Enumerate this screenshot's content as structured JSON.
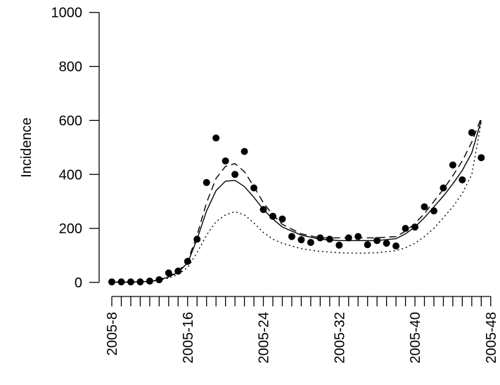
{
  "chart_data": {
    "type": "scatter",
    "ylabel": "Incidence",
    "xlabel": "",
    "xlim": [
      8,
      48
    ],
    "ylim": [
      0,
      1000
    ],
    "x_ticks": [
      {
        "value": 8,
        "label": "2005-8"
      },
      {
        "value": 16,
        "label": "2005-16"
      },
      {
        "value": 24,
        "label": "2005-24"
      },
      {
        "value": 32,
        "label": "2005-32"
      },
      {
        "value": 40,
        "label": "2005-40"
      },
      {
        "value": 48,
        "label": "2005-48"
      }
    ],
    "y_ticks": [
      {
        "value": 0,
        "label": "0"
      },
      {
        "value": 200,
        "label": "200"
      },
      {
        "value": 400,
        "label": "400"
      },
      {
        "value": 600,
        "label": "600"
      },
      {
        "value": 800,
        "label": "800"
      },
      {
        "value": 1000,
        "label": "1000"
      }
    ],
    "grid": false,
    "legend": "none",
    "points": {
      "marker": "filled-circle",
      "color": "#000000",
      "x": [
        8,
        9,
        10,
        11,
        12,
        13,
        14,
        15,
        16,
        17,
        18,
        19,
        20,
        21,
        22,
        23,
        24,
        25,
        26,
        27,
        28,
        29,
        30,
        31,
        32,
        33,
        34,
        35,
        36,
        37,
        38,
        39,
        40,
        41,
        42,
        43,
        44,
        45,
        46,
        47
      ],
      "y": [
        2,
        2,
        2,
        2,
        5,
        10,
        35,
        42,
        78,
        160,
        370,
        535,
        450,
        400,
        485,
        350,
        270,
        245,
        235,
        170,
        158,
        148,
        165,
        160,
        138,
        165,
        170,
        140,
        155,
        145,
        135,
        200,
        205,
        280,
        265,
        350,
        435,
        380,
        555,
        462
      ]
    },
    "series": [
      {
        "style": "solid",
        "color": "#000000",
        "x": [
          8,
          10,
          12,
          13,
          14,
          15,
          16,
          17,
          18,
          19,
          20,
          21,
          22,
          23,
          24,
          25,
          26,
          28,
          30,
          32,
          34,
          36,
          38,
          39,
          40,
          41,
          42,
          43,
          44,
          45,
          46,
          47
        ],
        "y": [
          1,
          1,
          4,
          10,
          20,
          38,
          72,
          160,
          265,
          340,
          375,
          378,
          355,
          315,
          270,
          235,
          205,
          175,
          160,
          155,
          155,
          155,
          162,
          180,
          205,
          240,
          280,
          320,
          365,
          415,
          480,
          600
        ]
      },
      {
        "style": "dashed",
        "color": "#000000",
        "x": [
          8,
          10,
          12,
          13,
          14,
          15,
          16,
          17,
          18,
          19,
          20,
          21,
          22,
          23,
          24,
          25,
          26,
          28,
          30,
          32,
          34,
          36,
          38,
          39,
          40,
          41,
          42,
          43,
          44,
          45,
          46,
          47
        ],
        "y": [
          1,
          1,
          4,
          10,
          22,
          40,
          78,
          175,
          295,
          385,
          430,
          440,
          410,
          355,
          295,
          250,
          215,
          180,
          165,
          165,
          165,
          165,
          170,
          190,
          218,
          255,
          300,
          345,
          395,
          450,
          520,
          610
        ]
      },
      {
        "style": "dotted",
        "color": "#000000",
        "x": [
          8,
          10,
          12,
          13,
          14,
          15,
          16,
          17,
          18,
          19,
          20,
          21,
          22,
          23,
          24,
          25,
          26,
          28,
          30,
          32,
          34,
          36,
          38,
          39,
          40,
          41,
          42,
          43,
          44,
          45,
          46,
          47
        ],
        "y": [
          1,
          1,
          3,
          8,
          16,
          30,
          55,
          110,
          175,
          225,
          250,
          262,
          250,
          220,
          185,
          160,
          145,
          125,
          115,
          110,
          108,
          110,
          118,
          128,
          145,
          170,
          200,
          240,
          280,
          330,
          400,
          595
        ]
      }
    ]
  }
}
